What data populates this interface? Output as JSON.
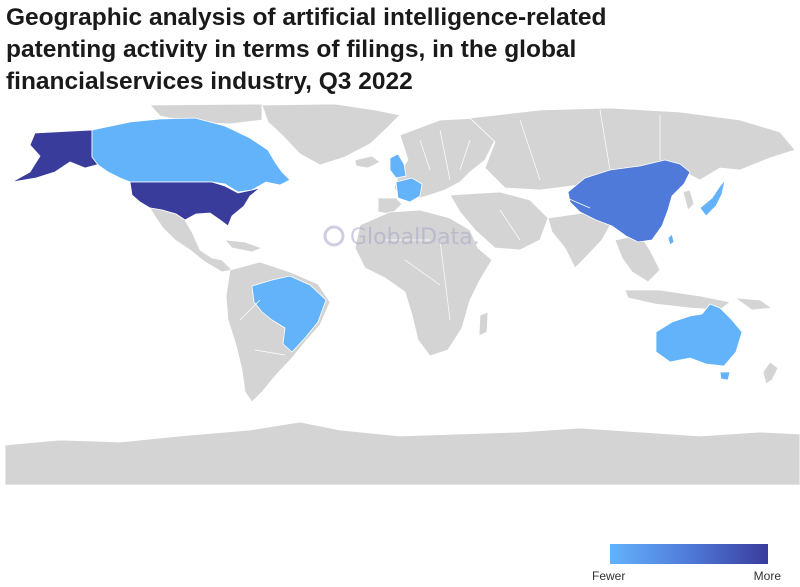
{
  "title_lines": [
    "Geographic analysis of artificial intelligence-related",
    "patenting activity in terms of filings, in the global",
    "financialservices industry, Q3 2022"
  ],
  "watermark": "GlobalData.",
  "legend": {
    "min_label": "Fewer",
    "max_label": "More"
  },
  "colors": {
    "base_land": "#d4d4d4",
    "scale": [
      "#63b3fb",
      "#4f7ad9",
      "#3a3c9c"
    ]
  },
  "highlighted_regions": [
    {
      "name": "United States",
      "level": "highest"
    },
    {
      "name": "China",
      "level": "high"
    },
    {
      "name": "Canada",
      "level": "low"
    },
    {
      "name": "United Kingdom",
      "level": "low"
    },
    {
      "name": "France",
      "level": "low"
    },
    {
      "name": "Japan",
      "level": "low"
    },
    {
      "name": "Brazil",
      "level": "low"
    },
    {
      "name": "Australia",
      "level": "low"
    },
    {
      "name": "Taiwan",
      "level": "low"
    }
  ]
}
